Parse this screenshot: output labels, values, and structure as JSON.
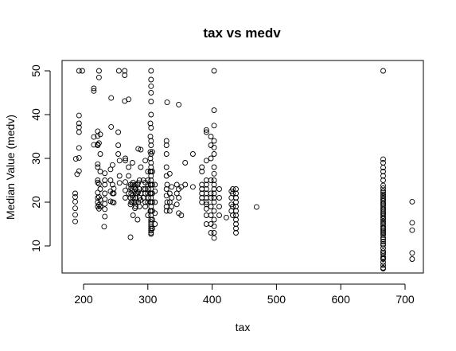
{
  "chart_data": {
    "type": "scatter",
    "title": "tax vs medv",
    "xlabel": "tax",
    "ylabel": "Median Value (medv)",
    "xlim": [
      170,
      720
    ],
    "ylim": [
      3,
      52
    ],
    "xticks": [
      200,
      300,
      400,
      500,
      600,
      700
    ],
    "yticks": [
      10,
      20,
      30,
      40,
      50
    ],
    "grid": false,
    "legend": "none",
    "marker": "open-circle",
    "points": [
      [
        187,
        15.6
      ],
      [
        187,
        17.1
      ],
      [
        187,
        18.6
      ],
      [
        187,
        20.1
      ],
      [
        187,
        21.2
      ],
      [
        187,
        22.0
      ],
      [
        188,
        29.9
      ],
      [
        190,
        26.4
      ],
      [
        193,
        27.1
      ],
      [
        193,
        30.1
      ],
      [
        193,
        32.4
      ],
      [
        193,
        36.0
      ],
      [
        193,
        37.1
      ],
      [
        193,
        38.0
      ],
      [
        193,
        39.8
      ],
      [
        193,
        50.0
      ],
      [
        198,
        50.0
      ],
      [
        216,
        33.1
      ],
      [
        216,
        34.9
      ],
      [
        216,
        45.4
      ],
      [
        216,
        46.0
      ],
      [
        222,
        19.0
      ],
      [
        222,
        20.0
      ],
      [
        222,
        21.0
      ],
      [
        222,
        22.2
      ],
      [
        222,
        24.5
      ],
      [
        222,
        25.0
      ],
      [
        222,
        28.0
      ],
      [
        222,
        28.7
      ],
      [
        222,
        33.0
      ],
      [
        222,
        33.2
      ],
      [
        222,
        35.1
      ],
      [
        222,
        36.2
      ],
      [
        224,
        18.5
      ],
      [
        224,
        19.4
      ],
      [
        224,
        21.2
      ],
      [
        224,
        24.2
      ],
      [
        224,
        33.5
      ],
      [
        224,
        48.5
      ],
      [
        224,
        50.0
      ],
      [
        226,
        19.0
      ],
      [
        226,
        20.5
      ],
      [
        226,
        23.0
      ],
      [
        226,
        27.0
      ],
      [
        226,
        31.0
      ],
      [
        226,
        35.5
      ],
      [
        232,
        14.4
      ],
      [
        233,
        16.7
      ],
      [
        233,
        18.4
      ],
      [
        233,
        19.6
      ],
      [
        233,
        20.7
      ],
      [
        233,
        22.0
      ],
      [
        233,
        24.0
      ],
      [
        233,
        25.0
      ],
      [
        233,
        26.6
      ],
      [
        242,
        20.2
      ],
      [
        242,
        22.5
      ],
      [
        242,
        25.0
      ],
      [
        242,
        27.5
      ],
      [
        243,
        37.2
      ],
      [
        243,
        43.8
      ],
      [
        245,
        20.0
      ],
      [
        245,
        22.0
      ],
      [
        245,
        24.0
      ],
      [
        245,
        28.5
      ],
      [
        247,
        19.9
      ],
      [
        247,
        22.0
      ],
      [
        247,
        23.1
      ],
      [
        254,
        31.0
      ],
      [
        254,
        33.0
      ],
      [
        254,
        36.0
      ],
      [
        255,
        50.0
      ],
      [
        256,
        24.4
      ],
      [
        256,
        26.0
      ],
      [
        256,
        29.5
      ],
      [
        264,
        43.1
      ],
      [
        264,
        49.0
      ],
      [
        264,
        50.0
      ],
      [
        265,
        21.0
      ],
      [
        265,
        22.7
      ],
      [
        265,
        24.6
      ],
      [
        265,
        29.5
      ],
      [
        265,
        30.0
      ],
      [
        270,
        22.0
      ],
      [
        270,
        23.5
      ],
      [
        270,
        26.0
      ],
      [
        270,
        28.0
      ],
      [
        270,
        43.5
      ],
      [
        273,
        12.0
      ],
      [
        273,
        19.5
      ],
      [
        273,
        21.0
      ],
      [
        273,
        24.0
      ],
      [
        274,
        20.0
      ],
      [
        274,
        22.0
      ],
      [
        274,
        23.2
      ],
      [
        276,
        20.0
      ],
      [
        276,
        21.5
      ],
      [
        276,
        22.6
      ],
      [
        276,
        24.0
      ],
      [
        276,
        29.0
      ],
      [
        277,
        17.0
      ],
      [
        277,
        21.0
      ],
      [
        277,
        24.5
      ],
      [
        279,
        20.0
      ],
      [
        279,
        22.5
      ],
      [
        279,
        23.5
      ],
      [
        280,
        18.6
      ],
      [
        281,
        19.0
      ],
      [
        281,
        20.0
      ],
      [
        281,
        21.0
      ],
      [
        281,
        22.0
      ],
      [
        281,
        23.0
      ],
      [
        281,
        24.0
      ],
      [
        284,
        16.0
      ],
      [
        284,
        22.0
      ],
      [
        284,
        24.0
      ],
      [
        285,
        20.0
      ],
      [
        285,
        22.3
      ],
      [
        285,
        24.4
      ],
      [
        285,
        32.2
      ],
      [
        287,
        19.0
      ],
      [
        287,
        21.0
      ],
      [
        287,
        23.0
      ],
      [
        287,
        25.0
      ],
      [
        289,
        20.5
      ],
      [
        289,
        22.0
      ],
      [
        289,
        28.0
      ],
      [
        289,
        32.0
      ],
      [
        293,
        21.0
      ],
      [
        293,
        23.0
      ],
      [
        293,
        25.0
      ],
      [
        296,
        19.0
      ],
      [
        296,
        20.0
      ],
      [
        296,
        22.0
      ],
      [
        296,
        23.0
      ],
      [
        296,
        24.5
      ],
      [
        296,
        29.5
      ],
      [
        300,
        17.0
      ],
      [
        300,
        20.0
      ],
      [
        300,
        22.0
      ],
      [
        300,
        24.0
      ],
      [
        300,
        25.0
      ],
      [
        300,
        27.0
      ],
      [
        301,
        21.0
      ],
      [
        301,
        23.0
      ],
      [
        304,
        18.0
      ],
      [
        304,
        20.0
      ],
      [
        304,
        22.0
      ],
      [
        304,
        24.0
      ],
      [
        304,
        27.0
      ],
      [
        304,
        30.0
      ],
      [
        304,
        31.5
      ],
      [
        304,
        35.0
      ],
      [
        304,
        38.0
      ],
      [
        305,
        12.7
      ],
      [
        305,
        13.0
      ],
      [
        305,
        13.5
      ],
      [
        305,
        14.0
      ],
      [
        305,
        14.5
      ],
      [
        305,
        15.0
      ],
      [
        305,
        15.5
      ],
      [
        305,
        16.0
      ],
      [
        305,
        17.0
      ],
      [
        305,
        18.0
      ],
      [
        305,
        19.0
      ],
      [
        305,
        20.0
      ],
      [
        305,
        21.0
      ],
      [
        305,
        22.0
      ],
      [
        305,
        23.0
      ],
      [
        305,
        24.0
      ],
      [
        305,
        25.0
      ],
      [
        305,
        26.0
      ],
      [
        305,
        27.0
      ],
      [
        305,
        28.0
      ],
      [
        305,
        29.0
      ],
      [
        305,
        31.0
      ],
      [
        305,
        33.0
      ],
      [
        305,
        34.0
      ],
      [
        305,
        37.0
      ],
      [
        305,
        40.0
      ],
      [
        305,
        43.0
      ],
      [
        305,
        45.0
      ],
      [
        305,
        46.5
      ],
      [
        305,
        48.0
      ],
      [
        305,
        50.0
      ],
      [
        307,
        14.0
      ],
      [
        307,
        16.0
      ],
      [
        307,
        18.0
      ],
      [
        307,
        20.0
      ],
      [
        307,
        22.0
      ],
      [
        307,
        24.0
      ],
      [
        307,
        27.0
      ],
      [
        307,
        31.5
      ],
      [
        311,
        15.0
      ],
      [
        311,
        17.5
      ],
      [
        311,
        20.0
      ],
      [
        311,
        22.5
      ],
      [
        311,
        24.0
      ],
      [
        329,
        18.0
      ],
      [
        329,
        19.0
      ],
      [
        329,
        21.5
      ],
      [
        329,
        23.0
      ],
      [
        329,
        26.0
      ],
      [
        329,
        28.0
      ],
      [
        329,
        31.0
      ],
      [
        329,
        33.0
      ],
      [
        329,
        34.0
      ],
      [
        330,
        42.8
      ],
      [
        330,
        20.0
      ],
      [
        330,
        24.0
      ],
      [
        334,
        18.0
      ],
      [
        334,
        20.0
      ],
      [
        334,
        22.0
      ],
      [
        334,
        26.5
      ],
      [
        337,
        19.0
      ],
      [
        337,
        21.0
      ],
      [
        337,
        23.5
      ],
      [
        345,
        19.5
      ],
      [
        345,
        22.0
      ],
      [
        345,
        24.0
      ],
      [
        348,
        17.5
      ],
      [
        348,
        21.0
      ],
      [
        348,
        23.0
      ],
      [
        348,
        42.3
      ],
      [
        352,
        17.0
      ],
      [
        352,
        23.5
      ],
      [
        358,
        24.0
      ],
      [
        358,
        29.0
      ],
      [
        370,
        23.5
      ],
      [
        370,
        31.0
      ],
      [
        384,
        20.0
      ],
      [
        384,
        21.0
      ],
      [
        384,
        22.0
      ],
      [
        384,
        23.0
      ],
      [
        384,
        24.0
      ],
      [
        384,
        27.0
      ],
      [
        384,
        28.0
      ],
      [
        391,
        15.0
      ],
      [
        391,
        17.0
      ],
      [
        391,
        18.5
      ],
      [
        391,
        19.5
      ],
      [
        391,
        20.0
      ],
      [
        391,
        21.0
      ],
      [
        391,
        22.0
      ],
      [
        391,
        23.0
      ],
      [
        391,
        24.0
      ],
      [
        391,
        25.0
      ],
      [
        391,
        29.5
      ],
      [
        391,
        36.0
      ],
      [
        391,
        36.5
      ],
      [
        398,
        13.0
      ],
      [
        398,
        15.0
      ],
      [
        398,
        17.0
      ],
      [
        398,
        19.0
      ],
      [
        398,
        21.0
      ],
      [
        398,
        22.0
      ],
      [
        398,
        25.0
      ],
      [
        398,
        30.0
      ],
      [
        398,
        33.0
      ],
      [
        398,
        35.0
      ],
      [
        403,
        11.8
      ],
      [
        403,
        13.0
      ],
      [
        403,
        14.5
      ],
      [
        403,
        16.0
      ],
      [
        403,
        18.0
      ],
      [
        403,
        20.0
      ],
      [
        403,
        21.0
      ],
      [
        403,
        22.0
      ],
      [
        403,
        23.0
      ],
      [
        403,
        24.0
      ],
      [
        403,
        25.0
      ],
      [
        403,
        26.5
      ],
      [
        403,
        28.0
      ],
      [
        403,
        31.0
      ],
      [
        403,
        32.5
      ],
      [
        403,
        34.0
      ],
      [
        403,
        37.5
      ],
      [
        403,
        41.0
      ],
      [
        403,
        50.0
      ],
      [
        411,
        17.0
      ],
      [
        411,
        19.0
      ],
      [
        411,
        21.0
      ],
      [
        411,
        23.0
      ],
      [
        422,
        16.5
      ],
      [
        430,
        18.0
      ],
      [
        430,
        19.5
      ],
      [
        430,
        21.0
      ],
      [
        430,
        22.5
      ],
      [
        432,
        17.0
      ],
      [
        432,
        19.0
      ],
      [
        432,
        22.0
      ],
      [
        432,
        23.0
      ],
      [
        437,
        13.0
      ],
      [
        437,
        14.0
      ],
      [
        437,
        15.0
      ],
      [
        437,
        16.0
      ],
      [
        437,
        17.0
      ],
      [
        437,
        18.0
      ],
      [
        437,
        19.0
      ],
      [
        437,
        20.0
      ],
      [
        437,
        21.0
      ],
      [
        437,
        22.0
      ],
      [
        437,
        23.0
      ],
      [
        469,
        18.9
      ],
      [
        666,
        4.8
      ],
      [
        666,
        5.0
      ],
      [
        666,
        5.6
      ],
      [
        666,
        6.3
      ],
      [
        666,
        7.0
      ],
      [
        666,
        7.2
      ],
      [
        666,
        7.5
      ],
      [
        666,
        8.1
      ],
      [
        666,
        8.5
      ],
      [
        666,
        8.8
      ],
      [
        666,
        9.5
      ],
      [
        666,
        10.2
      ],
      [
        666,
        10.5
      ],
      [
        666,
        11.0
      ],
      [
        666,
        11.5
      ],
      [
        666,
        11.9
      ],
      [
        666,
        12.5
      ],
      [
        666,
        12.8
      ],
      [
        666,
        13.1
      ],
      [
        666,
        13.4
      ],
      [
        666,
        13.8
      ],
      [
        666,
        14.1
      ],
      [
        666,
        14.4
      ],
      [
        666,
        14.9
      ],
      [
        666,
        15.2
      ],
      [
        666,
        15.6
      ],
      [
        666,
        16.1
      ],
      [
        666,
        16.4
      ],
      [
        666,
        16.8
      ],
      [
        666,
        17.2
      ],
      [
        666,
        17.5
      ],
      [
        666,
        17.8
      ],
      [
        666,
        18.2
      ],
      [
        666,
        18.5
      ],
      [
        666,
        18.9
      ],
      [
        666,
        19.3
      ],
      [
        666,
        19.6
      ],
      [
        666,
        19.9
      ],
      [
        666,
        20.3
      ],
      [
        666,
        20.6
      ],
      [
        666,
        21.0
      ],
      [
        666,
        21.4
      ],
      [
        666,
        21.8
      ],
      [
        666,
        22.2
      ],
      [
        666,
        22.6
      ],
      [
        666,
        23.2
      ],
      [
        666,
        23.8
      ],
      [
        666,
        25.0
      ],
      [
        666,
        26.0
      ],
      [
        666,
        27.0
      ],
      [
        666,
        27.9
      ],
      [
        666,
        29.0
      ],
      [
        666,
        29.8
      ],
      [
        666,
        50.0
      ],
      [
        711,
        7.0
      ],
      [
        711,
        8.4
      ],
      [
        711,
        13.6
      ],
      [
        711,
        15.3
      ],
      [
        711,
        20.1
      ]
    ]
  }
}
